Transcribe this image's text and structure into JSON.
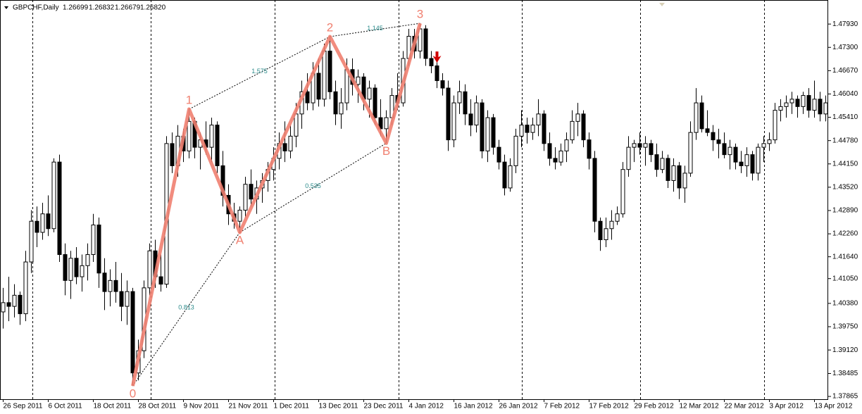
{
  "chart_data": {
    "type": "candlestick",
    "symbol": "GBPCHF,Daily",
    "quote": [
      "1.26699",
      "1.26832",
      "1.26679",
      "1.26820"
    ],
    "ylim": [
      1.3779,
      1.4858
    ],
    "yticks": [
      {
        "value": 1.4793,
        "label": "1.47930"
      },
      {
        "value": 1.473,
        "label": "1.47300"
      },
      {
        "value": 1.4667,
        "label": "1.46670"
      },
      {
        "value": 1.4604,
        "label": "1.46040"
      },
      {
        "value": 1.4541,
        "label": "1.45410"
      },
      {
        "value": 1.4478,
        "label": "1.44780"
      },
      {
        "value": 1.4415,
        "label": "1.44150"
      },
      {
        "value": 1.4352,
        "label": "1.43520"
      },
      {
        "value": 1.4289,
        "label": "1.42890"
      },
      {
        "value": 1.4226,
        "label": "1.42260"
      },
      {
        "value": 1.4164,
        "label": "1.41640"
      },
      {
        "value": 1.4105,
        "label": "1.41050"
      },
      {
        "value": 1.4038,
        "label": "1.40380"
      },
      {
        "value": 1.3975,
        "label": "1.39750"
      },
      {
        "value": 1.3912,
        "label": "1.39120"
      },
      {
        "value": 1.38485,
        "label": "1.38485"
      },
      {
        "value": 1.37865,
        "label": "1.37865"
      }
    ],
    "categories": [
      "26 Sep 2011",
      null,
      null,
      null,
      null,
      null,
      null,
      null,
      "6 Oct 2011",
      null,
      null,
      null,
      null,
      null,
      null,
      null,
      "18 Oct 2011",
      null,
      null,
      null,
      null,
      null,
      null,
      null,
      "28 Oct 2011",
      null,
      null,
      null,
      null,
      null,
      null,
      null,
      "9 Nov 2011",
      null,
      null,
      null,
      null,
      null,
      null,
      null,
      "21 Nov 2011",
      null,
      null,
      null,
      null,
      null,
      null,
      null,
      "1 Dec 2011",
      null,
      null,
      null,
      null,
      null,
      null,
      null,
      "13 Dec 2011",
      null,
      null,
      null,
      null,
      null,
      null,
      null,
      "23 Dec 2011",
      null,
      null,
      null,
      null,
      null,
      null,
      null,
      "4 Jan 2012",
      null,
      null,
      null,
      null,
      null,
      null,
      null,
      "16 Jan 2012",
      null,
      null,
      null,
      null,
      null,
      null,
      null,
      "26 Jan 2012",
      null,
      null,
      null,
      null,
      null,
      null,
      null,
      "7 Feb 2012",
      null,
      null,
      null,
      null,
      null,
      null,
      null,
      "17 Feb 2012",
      null,
      null,
      null,
      null,
      null,
      null,
      null,
      "29 Feb 2012",
      null,
      null,
      null,
      null,
      null,
      null,
      null,
      "12 Mar 2012",
      null,
      null,
      null,
      null,
      null,
      null,
      null,
      "22 Mar 2012",
      null,
      null,
      null,
      null,
      null,
      null,
      null,
      "3 Apr 2012",
      null,
      null,
      null,
      null,
      null,
      null,
      null,
      "13 Apr 2012",
      null,
      null
    ],
    "candles": [
      [
        1.4015,
        1.408,
        1.397,
        1.404
      ],
      [
        1.404,
        1.411,
        1.399,
        1.403
      ],
      [
        1.403,
        1.409,
        1.4,
        1.406
      ],
      [
        1.406,
        1.407,
        1.398,
        1.401
      ],
      [
        1.401,
        1.418,
        1.399,
        1.415
      ],
      [
        1.415,
        1.429,
        1.412,
        1.426
      ],
      [
        1.426,
        1.43,
        1.419,
        1.423
      ],
      [
        1.423,
        1.431,
        1.421,
        1.428
      ],
      [
        1.428,
        1.433,
        1.422,
        1.424
      ],
      [
        1.424,
        1.443,
        1.423,
        1.442
      ],
      [
        1.442,
        1.444,
        1.415,
        1.417
      ],
      [
        1.417,
        1.42,
        1.406,
        1.41
      ],
      [
        1.41,
        1.418,
        1.405,
        1.416
      ],
      [
        1.416,
        1.419,
        1.409,
        1.411
      ],
      [
        1.411,
        1.417,
        1.407,
        1.414
      ],
      [
        1.414,
        1.42,
        1.41,
        1.417
      ],
      [
        1.417,
        1.428,
        1.415,
        1.425
      ],
      [
        1.425,
        1.427,
        1.408,
        1.412
      ],
      [
        1.412,
        1.416,
        1.402,
        1.407
      ],
      [
        1.407,
        1.413,
        1.403,
        1.41
      ],
      [
        1.41,
        1.415,
        1.404,
        1.407
      ],
      [
        1.407,
        1.412,
        1.399,
        1.403
      ],
      [
        1.403,
        1.41,
        1.398,
        1.407
      ],
      [
        1.407,
        1.408,
        1.3815,
        1.385
      ],
      [
        1.385,
        1.394,
        1.383,
        1.391
      ],
      [
        1.391,
        1.41,
        1.389,
        1.408
      ],
      [
        1.408,
        1.42,
        1.406,
        1.418
      ],
      [
        1.418,
        1.421,
        1.408,
        1.411
      ],
      [
        1.411,
        1.417,
        1.407,
        1.409
      ],
      [
        1.409,
        1.449,
        1.408,
        1.447
      ],
      [
        1.447,
        1.45,
        1.439,
        1.441
      ],
      [
        1.441,
        1.452,
        1.438,
        1.449
      ],
      [
        1.449,
        1.451,
        1.442,
        1.445
      ],
      [
        1.445,
        1.4563,
        1.443,
        1.453
      ],
      [
        1.453,
        1.454,
        1.443,
        1.446
      ],
      [
        1.446,
        1.45,
        1.44,
        1.448
      ],
      [
        1.448,
        1.453,
        1.444,
        1.446
      ],
      [
        1.446,
        1.454,
        1.442,
        1.452
      ],
      [
        1.452,
        1.453,
        1.439,
        1.441
      ],
      [
        1.441,
        1.445,
        1.43,
        1.433
      ],
      [
        1.433,
        1.436,
        1.425,
        1.428
      ],
      [
        1.428,
        1.431,
        1.424,
        1.426
      ],
      [
        1.426,
        1.43,
        1.423,
        1.429
      ],
      [
        1.429,
        1.438,
        1.427,
        1.436
      ],
      [
        1.436,
        1.44,
        1.43,
        1.432
      ],
      [
        1.432,
        1.437,
        1.428,
        1.435
      ],
      [
        1.435,
        1.439,
        1.431,
        1.437
      ],
      [
        1.437,
        1.442,
        1.434,
        1.44
      ],
      [
        1.44,
        1.446,
        1.437,
        1.443
      ],
      [
        1.443,
        1.45,
        1.44,
        1.447
      ],
      [
        1.447,
        1.453,
        1.442,
        1.445
      ],
      [
        1.445,
        1.452,
        1.443,
        1.449
      ],
      [
        1.449,
        1.458,
        1.446,
        1.455
      ],
      [
        1.455,
        1.464,
        1.451,
        1.461
      ],
      [
        1.461,
        1.466,
        1.456,
        1.458
      ],
      [
        1.458,
        1.469,
        1.456,
        1.466
      ],
      [
        1.466,
        1.47,
        1.457,
        1.459
      ],
      [
        1.459,
        1.474,
        1.457,
        1.472
      ],
      [
        1.472,
        1.4759,
        1.459,
        1.461
      ],
      [
        1.461,
        1.464,
        1.452,
        1.455
      ],
      [
        1.455,
        1.462,
        1.451,
        1.458
      ],
      [
        1.458,
        1.47,
        1.456,
        1.467
      ],
      [
        1.467,
        1.47,
        1.46,
        1.463
      ],
      [
        1.463,
        1.467,
        1.458,
        1.465
      ],
      [
        1.465,
        1.466,
        1.456,
        1.459
      ],
      [
        1.459,
        1.464,
        1.454,
        1.462
      ],
      [
        1.462,
        1.463,
        1.452,
        1.454
      ],
      [
        1.454,
        1.459,
        1.449,
        1.451
      ],
      [
        1.451,
        1.456,
        1.4471,
        1.454
      ],
      [
        1.454,
        1.462,
        1.452,
        1.46
      ],
      [
        1.46,
        1.466,
        1.456,
        1.458
      ],
      [
        1.458,
        1.472,
        1.457,
        1.47
      ],
      [
        1.47,
        1.478,
        1.468,
        1.476
      ],
      [
        1.476,
        1.478,
        1.47,
        1.472
      ],
      [
        1.472,
        1.4795,
        1.47,
        1.478
      ],
      [
        1.478,
        1.479,
        1.468,
        1.47
      ],
      [
        1.47,
        1.472,
        1.466,
        1.468
      ],
      [
        1.468,
        1.471,
        1.462,
        1.464
      ],
      [
        1.464,
        1.466,
        1.46,
        1.462
      ],
      [
        1.462,
        1.464,
        1.445,
        1.448
      ],
      [
        1.448,
        1.46,
        1.446,
        1.458
      ],
      [
        1.458,
        1.464,
        1.455,
        1.461
      ],
      [
        1.461,
        1.463,
        1.452,
        1.455
      ],
      [
        1.455,
        1.459,
        1.449,
        1.452
      ],
      [
        1.452,
        1.46,
        1.45,
        1.458
      ],
      [
        1.458,
        1.459,
        1.443,
        1.445
      ],
      [
        1.445,
        1.456,
        1.442,
        1.454
      ],
      [
        1.454,
        1.455,
        1.444,
        1.446
      ],
      [
        1.446,
        1.448,
        1.44,
        1.442
      ],
      [
        1.442,
        1.444,
        1.433,
        1.435
      ],
      [
        1.435,
        1.443,
        1.434,
        1.441
      ],
      [
        1.441,
        1.451,
        1.439,
        1.449
      ],
      [
        1.449,
        1.456,
        1.446,
        1.452
      ],
      [
        1.452,
        1.454,
        1.447,
        1.45
      ],
      [
        1.45,
        1.454,
        1.448,
        1.452
      ],
      [
        1.452,
        1.459,
        1.449,
        1.455
      ],
      [
        1.455,
        1.456,
        1.445,
        1.447
      ],
      [
        1.447,
        1.45,
        1.441,
        1.443
      ],
      [
        1.443,
        1.446,
        1.44,
        1.442
      ],
      [
        1.442,
        1.447,
        1.441,
        1.445
      ],
      [
        1.445,
        1.45,
        1.442,
        1.448
      ],
      [
        1.448,
        1.456,
        1.447,
        1.453
      ],
      [
        1.453,
        1.458,
        1.449,
        1.455
      ],
      [
        1.455,
        1.456,
        1.446,
        1.448
      ],
      [
        1.448,
        1.45,
        1.44,
        1.443
      ],
      [
        1.443,
        1.445,
        1.423,
        1.426
      ],
      [
        1.426,
        1.427,
        1.418,
        1.421
      ],
      [
        1.421,
        1.427,
        1.419,
        1.424
      ],
      [
        1.424,
        1.429,
        1.421,
        1.426
      ],
      [
        1.426,
        1.43,
        1.425,
        1.428
      ],
      [
        1.428,
        1.442,
        1.427,
        1.44
      ],
      [
        1.44,
        1.449,
        1.438,
        1.446
      ],
      [
        1.446,
        1.448,
        1.442,
        1.447
      ],
      [
        1.447,
        1.45,
        1.444,
        1.446
      ],
      [
        1.446,
        1.449,
        1.441,
        1.447
      ],
      [
        1.447,
        1.448,
        1.442,
        1.444
      ],
      [
        1.444,
        1.447,
        1.438,
        1.44
      ],
      [
        1.44,
        1.445,
        1.439,
        1.443
      ],
      [
        1.443,
        1.444,
        1.435,
        1.437
      ],
      [
        1.437,
        1.443,
        1.434,
        1.441
      ],
      [
        1.441,
        1.442,
        1.432,
        1.435
      ],
      [
        1.435,
        1.441,
        1.431,
        1.439
      ],
      [
        1.439,
        1.453,
        1.438,
        1.45
      ],
      [
        1.45,
        1.462,
        1.448,
        1.458
      ],
      [
        1.458,
        1.46,
        1.45,
        1.451
      ],
      [
        1.451,
        1.456,
        1.449,
        1.45
      ],
      [
        1.45,
        1.452,
        1.445,
        1.448
      ],
      [
        1.448,
        1.451,
        1.443,
        1.447
      ],
      [
        1.447,
        1.45,
        1.443,
        1.444
      ],
      [
        1.444,
        1.448,
        1.44,
        1.446
      ],
      [
        1.446,
        1.447,
        1.44,
        1.442
      ],
      [
        1.442,
        1.445,
        1.439,
        1.441
      ],
      [
        1.441,
        1.446,
        1.438,
        1.444
      ],
      [
        1.444,
        1.445,
        1.437,
        1.439
      ],
      [
        1.439,
        1.447,
        1.437,
        1.446
      ],
      [
        1.446,
        1.449,
        1.442,
        1.447
      ],
      [
        1.447,
        1.45,
        1.445,
        1.448
      ],
      [
        1.448,
        1.458,
        1.447,
        1.456
      ],
      [
        1.456,
        1.459,
        1.453,
        1.457
      ],
      [
        1.457,
        1.46,
        1.454,
        1.458
      ],
      [
        1.458,
        1.461,
        1.455,
        1.459
      ],
      [
        1.459,
        1.46,
        1.454,
        1.457
      ],
      [
        1.457,
        1.461,
        1.455,
        1.46
      ],
      [
        1.46,
        1.462,
        1.454,
        1.456
      ],
      [
        1.456,
        1.464,
        1.454,
        1.459
      ],
      [
        1.459,
        1.461,
        1.453,
        1.455
      ],
      [
        1.455,
        1.46,
        1.453,
        1.458
      ]
    ],
    "pattern": {
      "color": "#f08070",
      "points": [
        {
          "label": "0",
          "x": 23,
          "price": 1.3815
        },
        {
          "label": "1",
          "x": 33,
          "price": 1.4563
        },
        {
          "label": "A",
          "x": 42,
          "price": 1.423
        },
        {
          "label": "2",
          "x": 58,
          "price": 1.4759
        },
        {
          "label": "B",
          "x": 68,
          "price": 1.4471
        },
        {
          "label": "3",
          "x": 74,
          "price": 1.4795
        }
      ],
      "ratios": [
        0.813,
        1.575,
        0.535,
        1.145
      ]
    },
    "signal": {
      "x": 77,
      "price": 1.4696,
      "color": "#d00000"
    }
  }
}
